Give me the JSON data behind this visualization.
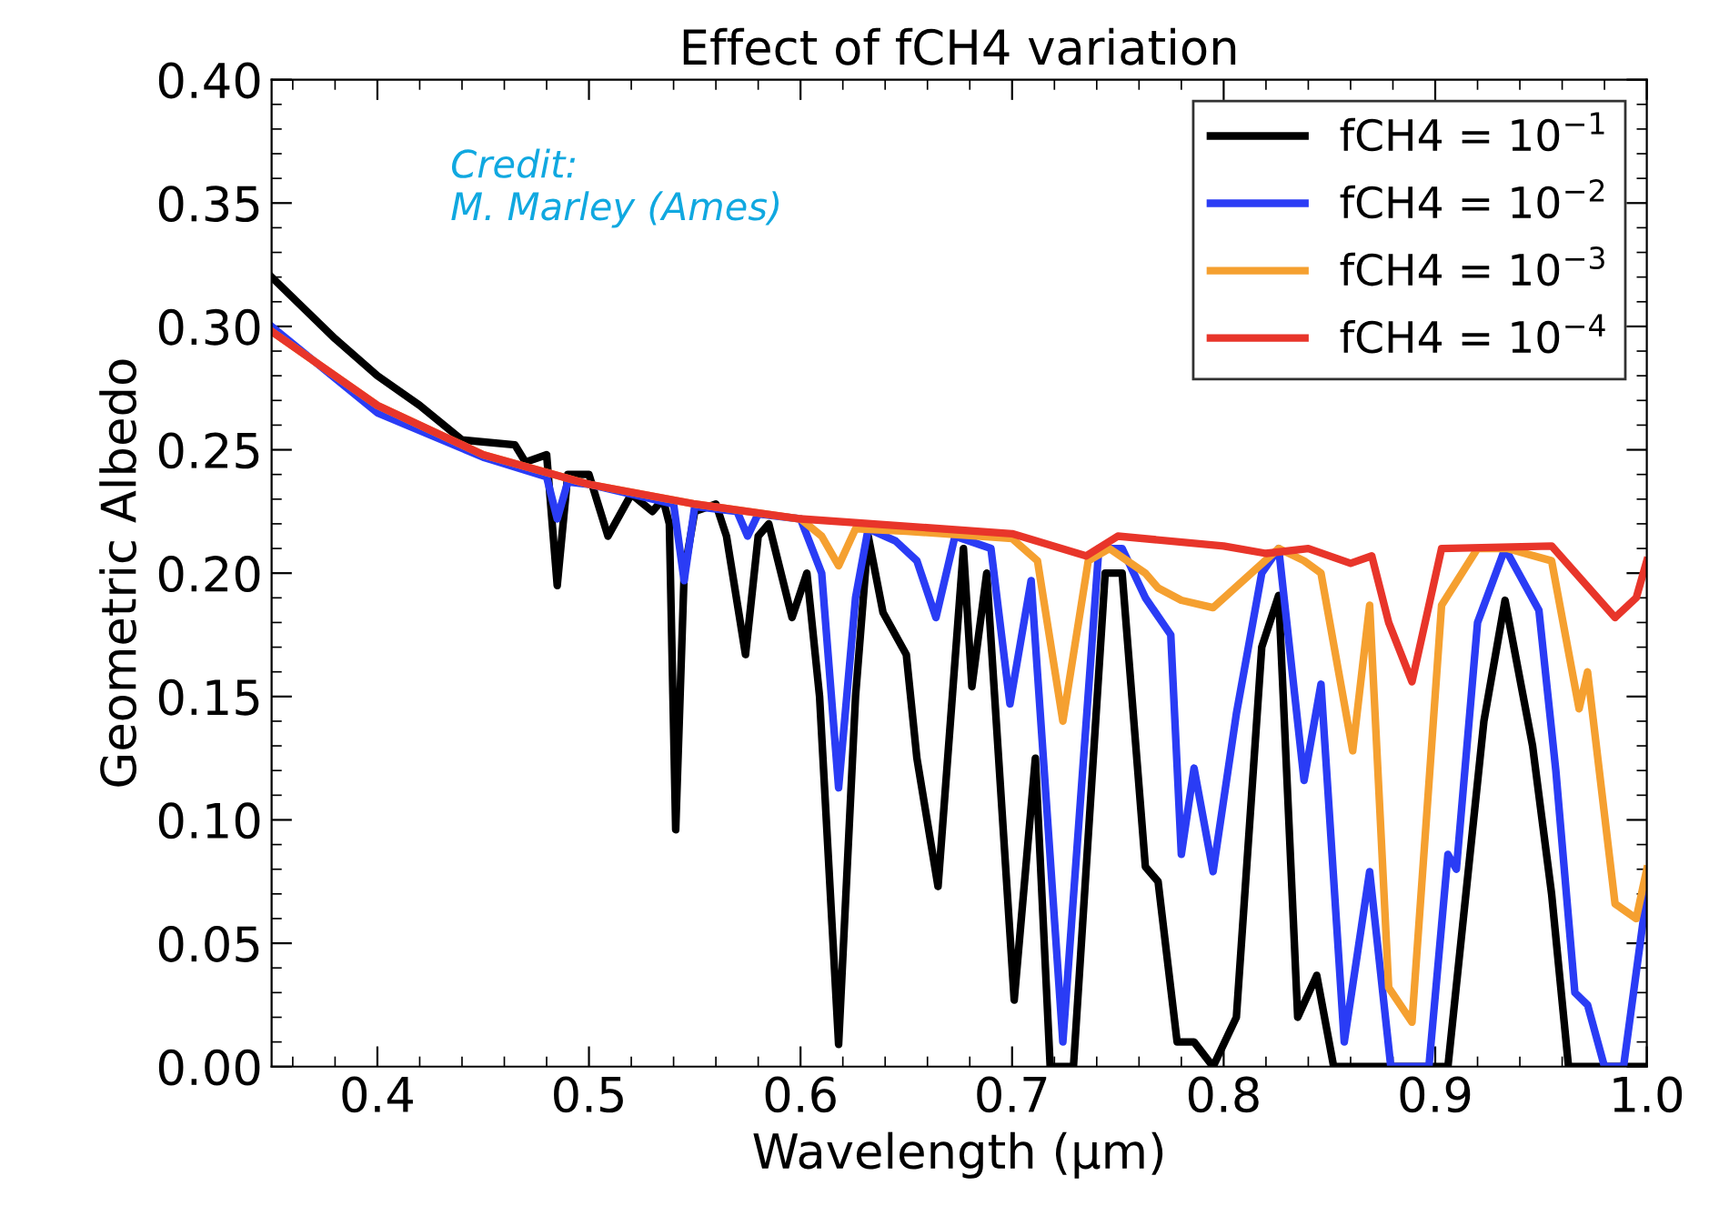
{
  "chart_data": {
    "type": "line",
    "title": "Effect of fCH4 variation",
    "xlabel": "Wavelength (μm)",
    "ylabel": "Geometric Albedo",
    "annotations": [
      "Credit:\nM. Marley (Ames)"
    ],
    "xlim": [
      0.35,
      1.0
    ],
    "xticks": [
      0.4,
      0.5,
      0.6,
      0.7,
      0.8,
      0.9,
      {
        "value": 1.0,
        "label": "1.0"
      }
    ],
    "ylim": [
      0,
      0.4
    ],
    "yticks": [
      {
        "value": 0,
        "label": "0.00"
      },
      {
        "value": 0.05,
        "label": "0.05"
      },
      {
        "value": 0.1,
        "label": "0.10"
      },
      {
        "value": 0.15,
        "label": "0.15"
      },
      {
        "value": 0.2,
        "label": "0.20"
      },
      {
        "value": 0.25,
        "label": "0.25"
      },
      {
        "value": 0.3,
        "label": "0.30"
      },
      {
        "value": 0.35,
        "label": "0.35"
      },
      {
        "value": 0.4,
        "label": "0.40"
      }
    ],
    "legend": "top right",
    "grid": false,
    "marker": "none",
    "line_style": "solid",
    "series": [
      {
        "name": "fCH4 = 10$^{−1}$",
        "color": "#000000",
        "x": [
          0.35,
          0.38,
          0.4,
          0.42,
          0.44,
          0.465,
          0.47,
          0.48,
          0.485,
          0.49,
          0.5,
          0.509,
          0.52,
          0.53,
          0.535,
          0.538,
          0.541,
          0.545,
          0.55,
          0.56,
          0.565,
          0.574,
          0.58,
          0.585,
          0.596,
          0.603,
          0.609,
          0.618,
          0.626,
          0.632,
          0.639,
          0.65,
          0.655,
          0.665,
          0.677,
          0.681,
          0.688,
          0.701,
          0.711,
          0.718,
          0.729,
          0.744,
          0.752,
          0.763,
          0.769,
          0.778,
          0.786,
          0.795,
          0.806,
          0.818,
          0.826,
          0.835,
          0.844,
          0.852,
          0.906,
          0.923,
          0.933,
          0.946,
          0.955,
          0.963,
          1.0
        ],
        "values": [
          0.32,
          0.295,
          0.28,
          0.268,
          0.254,
          0.252,
          0.245,
          0.248,
          0.195,
          0.24,
          0.24,
          0.215,
          0.232,
          0.225,
          0.23,
          0.22,
          0.096,
          0.2,
          0.225,
          0.228,
          0.215,
          0.167,
          0.215,
          0.22,
          0.182,
          0.2,
          0.15,
          0.009,
          0.15,
          0.215,
          0.184,
          0.167,
          0.125,
          0.073,
          0.21,
          0.154,
          0.2,
          0.027,
          0.125,
          0.0,
          0.0,
          0.2,
          0.2,
          0.081,
          0.075,
          0.01,
          0.01,
          0.0,
          0.02,
          0.17,
          0.191,
          0.02,
          0.037,
          0.0,
          0.0,
          0.14,
          0.189,
          0.13,
          0.07,
          0.0,
          0.0
        ]
      },
      {
        "name": "fCH4 = 10$^{−2}$",
        "color": "#2a3cf5",
        "x": [
          0.35,
          0.4,
          0.45,
          0.48,
          0.485,
          0.49,
          0.5,
          0.54,
          0.545,
          0.55,
          0.57,
          0.575,
          0.58,
          0.6,
          0.61,
          0.618,
          0.626,
          0.632,
          0.645,
          0.655,
          0.664,
          0.673,
          0.69,
          0.699,
          0.709,
          0.724,
          0.741,
          0.752,
          0.763,
          0.775,
          0.78,
          0.786,
          0.795,
          0.806,
          0.818,
          0.826,
          0.838,
          0.846,
          0.857,
          0.869,
          0.879,
          0.897,
          0.906,
          0.91,
          0.92,
          0.933,
          0.949,
          0.957,
          0.966,
          0.972,
          0.98,
          0.989,
          1.0
        ],
        "values": [
          0.3,
          0.265,
          0.247,
          0.239,
          0.222,
          0.237,
          0.236,
          0.228,
          0.197,
          0.227,
          0.225,
          0.215,
          0.224,
          0.222,
          0.2,
          0.113,
          0.19,
          0.218,
          0.213,
          0.205,
          0.182,
          0.215,
          0.21,
          0.147,
          0.197,
          0.01,
          0.21,
          0.21,
          0.19,
          0.175,
          0.086,
          0.121,
          0.079,
          0.143,
          0.2,
          0.21,
          0.116,
          0.155,
          0.01,
          0.079,
          0.0,
          0.0,
          0.086,
          0.08,
          0.18,
          0.21,
          0.185,
          0.12,
          0.03,
          0.025,
          0.0,
          0.0,
          0.07
        ]
      },
      {
        "name": "fCH4 = 10$^{−3}$",
        "color": "#f5a030",
        "x": [
          0.35,
          0.4,
          0.45,
          0.5,
          0.55,
          0.6,
          0.61,
          0.618,
          0.626,
          0.65,
          0.7,
          0.712,
          0.724,
          0.736,
          0.746,
          0.763,
          0.769,
          0.78,
          0.795,
          0.826,
          0.838,
          0.846,
          0.861,
          0.869,
          0.878,
          0.889,
          0.903,
          0.92,
          0.934,
          0.955,
          0.968,
          0.972,
          0.985,
          0.995,
          1.0
        ],
        "values": [
          0.298,
          0.268,
          0.248,
          0.236,
          0.228,
          0.222,
          0.215,
          0.203,
          0.218,
          0.217,
          0.214,
          0.205,
          0.14,
          0.205,
          0.21,
          0.2,
          0.194,
          0.189,
          0.186,
          0.21,
          0.205,
          0.2,
          0.128,
          0.187,
          0.032,
          0.018,
          0.187,
          0.21,
          0.21,
          0.205,
          0.145,
          0.16,
          0.066,
          0.06,
          0.08
        ]
      },
      {
        "name": "fCH4 = 10$^{−4}$",
        "color": "#e8352a",
        "x": [
          0.35,
          0.4,
          0.45,
          0.5,
          0.55,
          0.6,
          0.65,
          0.7,
          0.735,
          0.75,
          0.8,
          0.82,
          0.84,
          0.86,
          0.87,
          0.878,
          0.889,
          0.903,
          0.955,
          0.985,
          0.995,
          1.0
        ],
        "values": [
          0.298,
          0.268,
          0.248,
          0.236,
          0.228,
          0.222,
          0.219,
          0.216,
          0.207,
          0.215,
          0.211,
          0.208,
          0.21,
          0.204,
          0.207,
          0.18,
          0.156,
          0.21,
          0.211,
          0.182,
          0.19,
          0.205
        ]
      }
    ]
  }
}
